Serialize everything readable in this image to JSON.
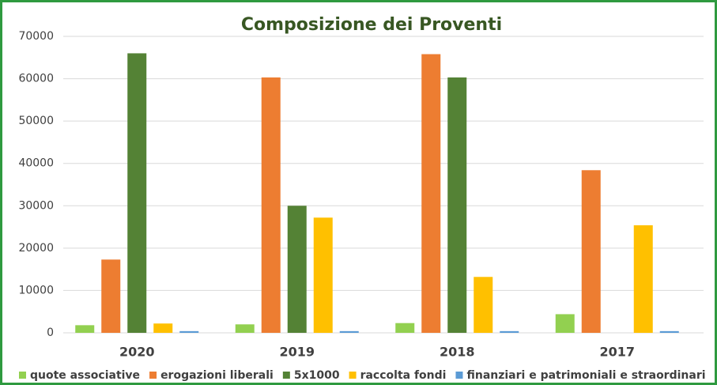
{
  "chart_data": {
    "type": "bar",
    "title": "Composizione dei Proventi",
    "categories": [
      "2020",
      "2019",
      "2018",
      "2017"
    ],
    "series": [
      {
        "name": "quote associative",
        "color": "#92d050",
        "values": [
          1800,
          2000,
          2300,
          4400
        ]
      },
      {
        "name": "erogazioni liberali",
        "color": "#ed7d31",
        "values": [
          17300,
          60300,
          65800,
          38400
        ]
      },
      {
        "name": "5x1000",
        "color": "#548235",
        "values": [
          66000,
          30000,
          60300,
          0
        ]
      },
      {
        "name": "raccolta fondi",
        "color": "#ffc000",
        "values": [
          2200,
          27200,
          13200,
          25400
        ]
      },
      {
        "name": "finanziari e patrimoniali e straordinari",
        "color": "#5b9bd5",
        "values": [
          400,
          400,
          400,
          400
        ]
      }
    ],
    "ylim": [
      0,
      70000
    ],
    "yticks": [
      0,
      10000,
      20000,
      30000,
      40000,
      50000,
      60000,
      70000
    ],
    "grid": true,
    "legend": "bottom"
  }
}
